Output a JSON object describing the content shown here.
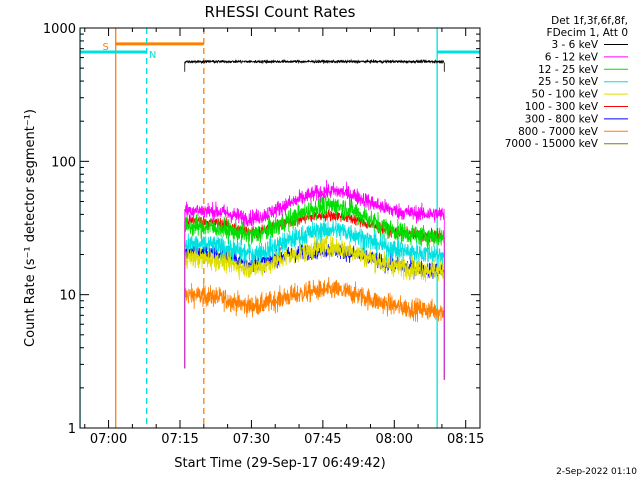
{
  "chart_data": {
    "type": "line",
    "title": "RHESSI Count Rates",
    "xlabel": "Start Time (29-Sep-17 06:49:42)",
    "ylabel": "Count Rate (s⁻¹ detector segment⁻¹)",
    "y_scale": "log",
    "ylim": [
      1,
      1000
    ],
    "xlim_minutes": [
      -6,
      78
    ],
    "x_ticks": [
      {
        "m": 0,
        "label": "07:00"
      },
      {
        "m": 15,
        "label": "07:15"
      },
      {
        "m": 30,
        "label": "07:30"
      },
      {
        "m": 45,
        "label": "07:45"
      },
      {
        "m": 60,
        "label": "08:00"
      },
      {
        "m": 75,
        "label": "08:15"
      }
    ],
    "y_ticks": [
      {
        "v": 1,
        "label": "1"
      },
      {
        "v": 10,
        "label": "10"
      },
      {
        "v": 100,
        "label": "100"
      },
      {
        "v": 1000,
        "label": "1000"
      }
    ],
    "legend_header": [
      "Det 1f,3f,6f,8f,",
      "FDecim 1, Att 0"
    ],
    "legend_position": "right",
    "series": [
      {
        "name": "3 - 6 keV",
        "color": "#000000",
        "profile": "flat",
        "level": 560,
        "noise": 0.012
      },
      {
        "name": "6 - 12 keV",
        "color": "#ff00ff",
        "profile": "hump",
        "base": 43,
        "peak": 60,
        "end": 40,
        "noise": 0.07
      },
      {
        "name": "12 - 25 keV",
        "color": "#00dd00",
        "profile": "hump",
        "base": 33,
        "peak": 47,
        "end": 27,
        "noise": 0.09
      },
      {
        "name": "25 - 50 keV",
        "color": "#00e0e0",
        "profile": "hump",
        "base": 24,
        "peak": 31,
        "end": 20,
        "noise": 0.09
      },
      {
        "name": "50 - 100 keV",
        "color": "#dddd00",
        "profile": "hump",
        "base": 19,
        "peak": 23,
        "end": 15,
        "noise": 0.09
      },
      {
        "name": "100 - 300 keV",
        "color": "#ff0000",
        "profile": "hump",
        "base": 36,
        "peak": 40,
        "end": 27,
        "noise": 0.05
      },
      {
        "name": "300 - 800 keV",
        "color": "#0000ff",
        "profile": "hump",
        "base": 21,
        "peak": 22,
        "end": 15,
        "noise": 0.07
      },
      {
        "name": "800 - 7000 keV",
        "color": "#ff8000",
        "profile": "hump",
        "base": 10,
        "peak": 11,
        "end": 7.5,
        "noise": 0.09
      },
      {
        "name": "7000 - 15000 keV",
        "color": "#808000",
        "profile": "none"
      }
    ],
    "series_x_range_minutes": [
      16,
      70.5
    ],
    "markers": [
      {
        "label": "S",
        "kind": "saa",
        "color": "#ff8000",
        "x_start": 1.5,
        "x_end": 20,
        "level": 760
      },
      {
        "label": "N",
        "kind": "night",
        "color": "#00e0e0",
        "x_start": -6,
        "x_end": 8,
        "level": 660
      },
      {
        "label": "",
        "kind": "night",
        "color": "#00e0e0",
        "x_start": 69,
        "x_end": 82,
        "level": 660
      }
    ],
    "grid": false
  },
  "footer": {
    "timestamp": "2-Sep-2022 01:10"
  }
}
